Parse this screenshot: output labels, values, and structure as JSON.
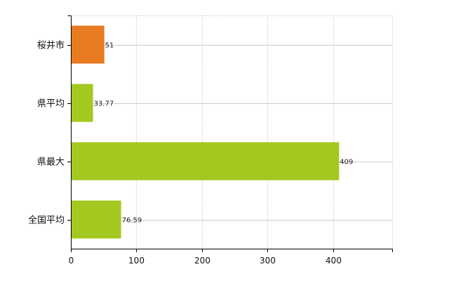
{
  "chart_data": {
    "type": "bar",
    "orientation": "horizontal",
    "categories": [
      "桜井市",
      "県平均",
      "県最大",
      "全国平均"
    ],
    "values": [
      51,
      33.77,
      409,
      76.59
    ],
    "value_labels": [
      "51",
      "33.77",
      "409",
      "76.59"
    ],
    "bar_colors": [
      "#E87A22",
      "#A3C81F",
      "#A3C81F",
      "#A3C81F"
    ],
    "xlim": [
      0,
      490
    ],
    "xticks": [
      0,
      100,
      200,
      300,
      400
    ],
    "xtick_labels": [
      "0",
      "100",
      "200",
      "300",
      "400"
    ],
    "grid": true,
    "grid_color": "#cccccc",
    "axis_color": "#000000",
    "title": "",
    "xlabel": "",
    "ylabel": ""
  }
}
